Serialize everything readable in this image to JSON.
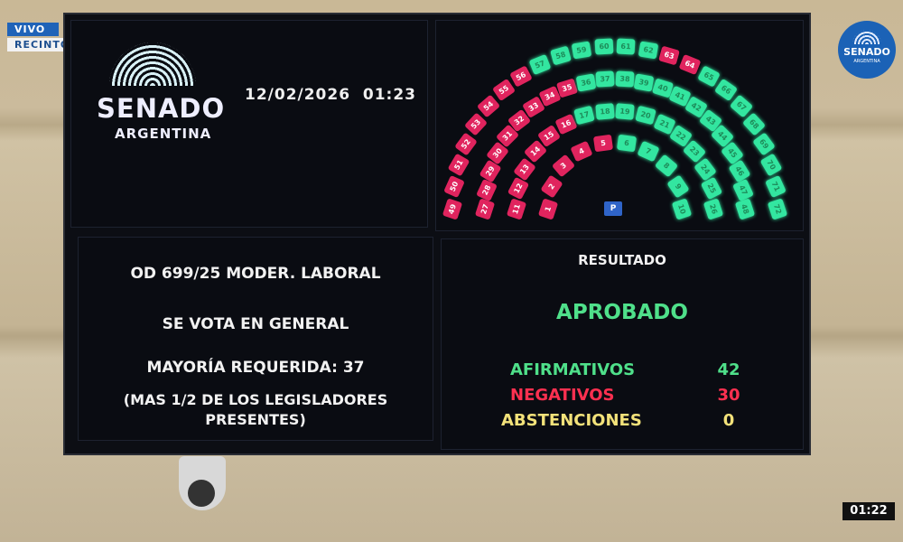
{
  "broadcast": {
    "live": "VIVO",
    "channel": "RECINTO",
    "timer": "01:22",
    "logo_word": "SENADO",
    "logo_sub": "ARGENTINA"
  },
  "board": {
    "logo_word": "SENADO",
    "logo_sub": "ARGENTINA",
    "datetime": "12/02/2026  01:23",
    "president_marker": "P",
    "seat_rows": [
      {
        "from": 1,
        "to": 10
      },
      {
        "from": 11,
        "to": 26
      },
      {
        "from": 27,
        "to": 48
      },
      {
        "from": 49,
        "to": 72
      }
    ],
    "negative_seats": [
      1,
      2,
      3,
      4,
      5,
      11,
      12,
      13,
      14,
      15,
      16,
      27,
      28,
      29,
      30,
      31,
      32,
      33,
      34,
      35,
      49,
      50,
      51,
      52,
      53,
      54,
      55,
      56,
      63,
      64
    ],
    "colors": {
      "affirmative": "#33e6a0",
      "negative": "#e0245e",
      "abstention": "#f0e080"
    },
    "motion": "OD 699/25 MODER. LABORAL",
    "vote_type": "SE VOTA EN GENERAL",
    "majority": "MAYORÍA REQUERIDA: 37",
    "majority_note_1": "(MAS 1/2 DE LOS LEGISLADORES",
    "majority_note_2": "PRESENTES)",
    "result_label": "RESULTADO",
    "result": "APROBADO",
    "tally": [
      {
        "label": "AFIRMATIVOS",
        "value": "42",
        "color": "#4fe08a"
      },
      {
        "label": "NEGATIVOS",
        "value": "30",
        "color": "#ff3050"
      },
      {
        "label": "ABSTENCIONES",
        "value": "0",
        "color": "#f3e27a"
      }
    ]
  }
}
